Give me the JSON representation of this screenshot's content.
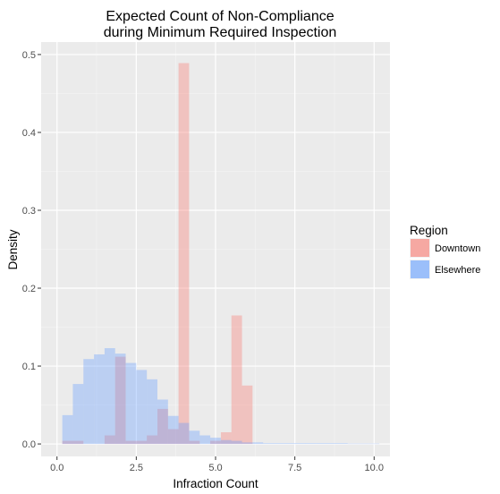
{
  "chart_data": {
    "type": "histogram",
    "title_lines": [
      "Expected Count of Non-Compliance",
      "during Minimum Required Inspection"
    ],
    "xlabel": "Infraction Count",
    "ylabel": "Density",
    "xlim": [
      -0.5,
      10.5
    ],
    "ylim": [
      -0.016,
      0.516
    ],
    "x_ticks": [
      0,
      2.5,
      5,
      7.5,
      10
    ],
    "x_tick_labels": [
      "0.0",
      "2.5",
      "5.0",
      "7.5",
      "10.0"
    ],
    "y_ticks": [
      0,
      0.1,
      0.2,
      0.3,
      0.4,
      0.5
    ],
    "y_tick_labels": [
      "0.0",
      "0.1",
      "0.2",
      "0.3",
      "0.4",
      "0.5"
    ],
    "bin_width": 0.333,
    "bin_starts": [
      0.167,
      0.5,
      0.833,
      1.167,
      1.5,
      1.833,
      2.167,
      2.5,
      2.833,
      3.167,
      3.5,
      3.833,
      4.167,
      4.5,
      4.833,
      5.167,
      5.5,
      5.833,
      6.167,
      6.5,
      6.833,
      7.167,
      7.5,
      7.833,
      8.167,
      8.5,
      8.833,
      9.167,
      9.5,
      9.833
    ],
    "series": [
      {
        "name": "Downtown",
        "fill": "#f8766d",
        "values": [
          0.004,
          0.004,
          0,
          0,
          0.011,
          0.112,
          0.004,
          0.004,
          0.011,
          0.045,
          0.019,
          0.489,
          0.004,
          0,
          0.004,
          0.015,
          0.165,
          0.075,
          0,
          0,
          0,
          0,
          0,
          0,
          0,
          0,
          0,
          0,
          0,
          0
        ]
      },
      {
        "name": "Elsewhere",
        "fill": "#619cff",
        "values": [
          0.037,
          0.077,
          0.109,
          0.115,
          0.123,
          0.116,
          0.104,
          0.095,
          0.083,
          0.057,
          0.036,
          0.027,
          0.017,
          0.011,
          0.008,
          0.005,
          0.004,
          0.002,
          0.002,
          0.001,
          0.001,
          0.001,
          0.001,
          0.001,
          0.001,
          0.001,
          0.001,
          0.0005,
          0.0005,
          0.0005
        ]
      }
    ],
    "fill_alpha": 0.35,
    "grid": true,
    "background": "#ebebeb",
    "legend": {
      "title": "Region",
      "placement": "right",
      "items": [
        {
          "label": "Downtown",
          "color": "#f8766d"
        },
        {
          "label": "Elsewhere",
          "color": "#619cff"
        }
      ]
    }
  }
}
